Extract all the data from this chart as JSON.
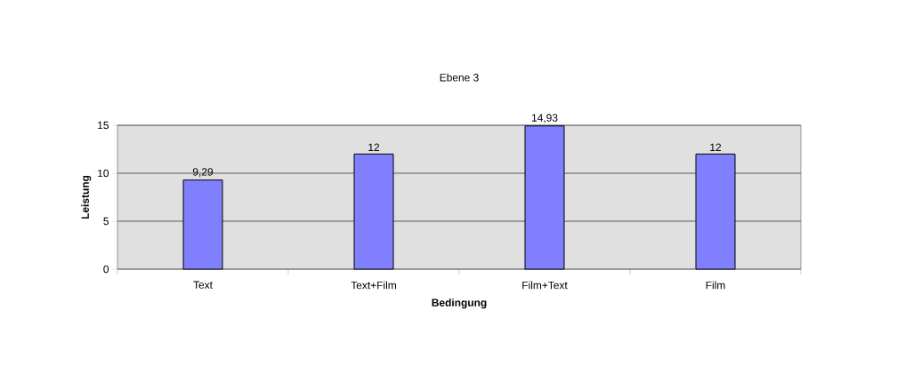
{
  "chart_data": {
    "type": "bar",
    "title": "Ebene 3",
    "xlabel": "Bedingung",
    "ylabel": "Leistung",
    "categories": [
      "Text",
      "Text+Film",
      "Film+Text",
      "Film"
    ],
    "values": [
      9.29,
      12,
      14.93,
      12
    ],
    "value_labels": [
      "9,29",
      "12",
      "14,93",
      "12"
    ],
    "color": "#8080ff",
    "ylim": [
      0,
      15
    ],
    "yticks": [
      0,
      5,
      10,
      15
    ],
    "grid": "y"
  }
}
